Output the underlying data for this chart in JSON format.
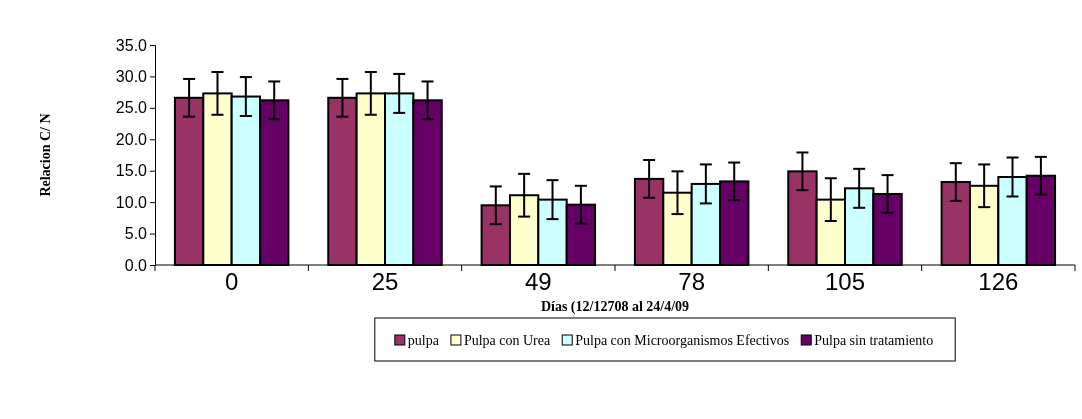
{
  "chart_data": {
    "type": "bar",
    "categories": [
      "0",
      "25",
      "49",
      "78",
      "105",
      "126"
    ],
    "xlabel": "Días (12/12708 al 24/4/09",
    "ylabel": "Relacion C/ N",
    "ylim": [
      0,
      35
    ],
    "yticks": [
      {
        "value": 0,
        "label": "0.0"
      },
      {
        "value": 5,
        "label": "5.0"
      },
      {
        "value": 10,
        "label": "10.0"
      },
      {
        "value": 15,
        "label": "15.0"
      },
      {
        "value": 20,
        "label": "20.0"
      },
      {
        "value": 25,
        "label": "25.0"
      },
      {
        "value": 30,
        "label": "30.0"
      },
      {
        "value": 35,
        "label": "35.0"
      }
    ],
    "legend": "bottom",
    "series": [
      {
        "name": "pulpa",
        "color": "#993366",
        "values": [
          26.6,
          26.6,
          9.5,
          13.7,
          14.9,
          13.2
        ],
        "errors": [
          3,
          3,
          3,
          3,
          3,
          3
        ]
      },
      {
        "name": "Pulpa con Urea",
        "color": "#ffffcc",
        "values": [
          27.3,
          27.3,
          11.1,
          11.5,
          10.4,
          12.6
        ],
        "errors": [
          3.4,
          3.4,
          3.4,
          3.4,
          3.4,
          3.4
        ]
      },
      {
        "name": "Pulpa con Microorganismos Efectivos",
        "color": "#ccffff",
        "values": [
          26.8,
          27.3,
          10.4,
          12.9,
          12.2,
          14.0
        ],
        "errors": [
          3.1,
          3.1,
          3.1,
          3.1,
          3.1,
          3.1
        ]
      },
      {
        "name": "Pulpa sin tratamiento",
        "color": "#660066",
        "values": [
          26.2,
          26.2,
          9.6,
          13.3,
          11.3,
          14.2
        ],
        "errors": [
          3,
          3,
          3,
          3,
          3,
          3
        ]
      }
    ]
  }
}
